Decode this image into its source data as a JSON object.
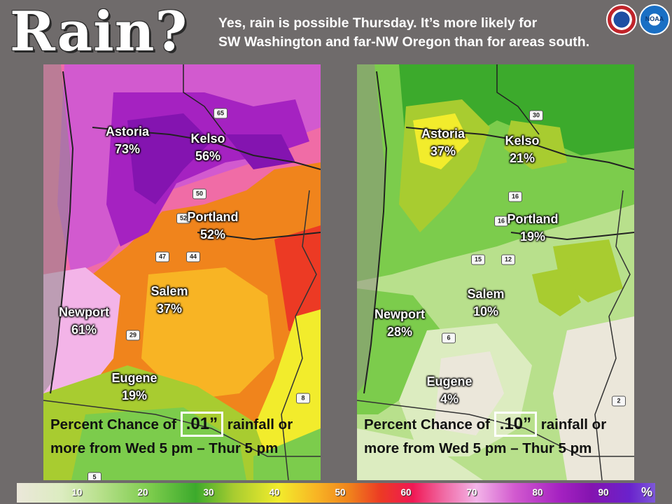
{
  "header": {
    "title": "Rain?",
    "subtitle_line1": "Yes, rain is possible Thursday. It’s more likely for",
    "subtitle_line2": "SW Washington and far-NW Oregon than for areas south."
  },
  "logos": {
    "nws": "NWS",
    "noaa": "NOAA"
  },
  "left_panel": {
    "cities": [
      {
        "name": "Astoria",
        "value": "73%"
      },
      {
        "name": "Kelso",
        "value": "56%"
      },
      {
        "name": "Portland",
        "value": "52%"
      },
      {
        "name": "Salem",
        "value": "37%"
      },
      {
        "name": "Newport",
        "value": "61%"
      },
      {
        "name": "Eugene",
        "value": "19%"
      }
    ],
    "shields": [
      "65",
      "50",
      "52",
      "47",
      "44",
      "29",
      "8",
      "5"
    ],
    "caption_prefix": "Percent Chance of ",
    "caption_threshold": ".01”",
    "caption_suffix": " rainfall or",
    "caption_line2": "more from Wed 5 pm – Thur 5 pm"
  },
  "right_panel": {
    "cities": [
      {
        "name": "Astoria",
        "value": "37%"
      },
      {
        "name": "Kelso",
        "value": "21%"
      },
      {
        "name": "Portland",
        "value": "19%"
      },
      {
        "name": "Salem",
        "value": "10%"
      },
      {
        "name": "Newport",
        "value": "28%"
      },
      {
        "name": "Eugene",
        "value": "4%"
      }
    ],
    "shields": [
      "30",
      "16",
      "16",
      "15",
      "12",
      "6",
      "2"
    ],
    "caption_prefix": "Percent Chance of ",
    "caption_threshold": ".10”",
    "caption_suffix": " rainfall or",
    "caption_line2": "more from Wed 5 pm – Thur 5 pm"
  },
  "colorbar": {
    "ticks": [
      "10",
      "20",
      "30",
      "40",
      "50",
      "60",
      "70",
      "80",
      "90"
    ],
    "unit": "%"
  },
  "colors": {
    "background": "#6f6b6b",
    "high_prob": "#8414b0",
    "mid_prob": "#f0841c",
    "low_prob": "#7ccc4c"
  }
}
